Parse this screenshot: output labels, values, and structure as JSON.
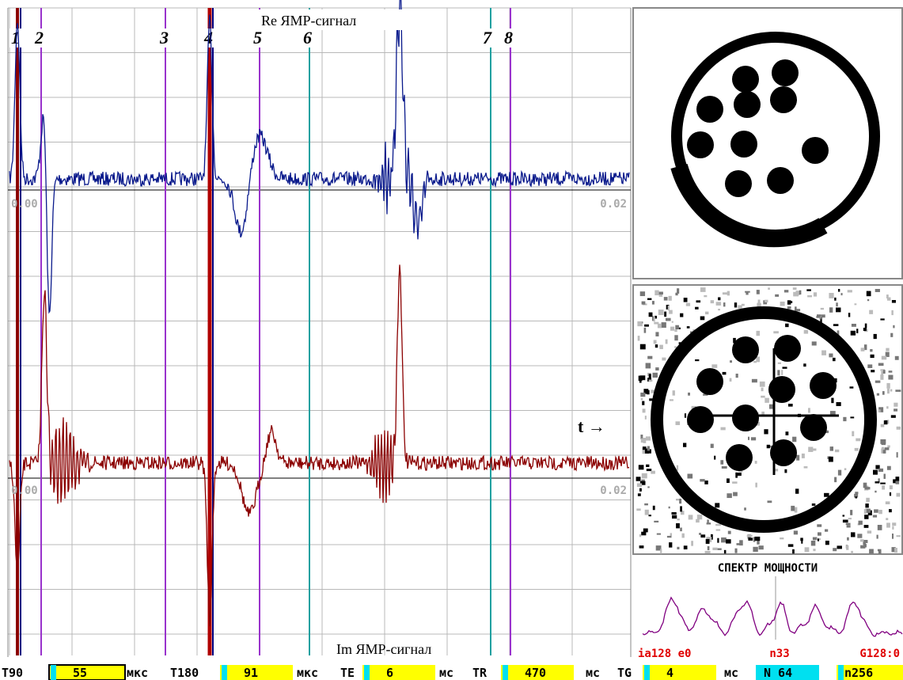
{
  "signals": {
    "re_label": "Re ЯМР-сигнал",
    "im_label": "Im ЯМР-сигнал",
    "markers": [
      "1",
      "2",
      "3",
      "4",
      "5",
      "6",
      "7",
      "8"
    ],
    "re_axis": {
      "start": "0.00",
      "end": "0.02"
    },
    "im_axis": {
      "start": "0.00",
      "end": "0.02"
    },
    "time_label": "t →"
  },
  "spectrum": {
    "title": "СПЕКТР МОЩНОСТИ",
    "status": [
      "ia128 e0",
      "n33",
      "G128:0"
    ]
  },
  "params": [
    {
      "label": "T90",
      "value": "55",
      "unit": "мкс"
    },
    {
      "label": "T180",
      "value": "91",
      "unit": "мкс"
    },
    {
      "label": "TE",
      "value": "6",
      "unit": "мс"
    },
    {
      "label": "TR",
      "value": "470",
      "unit": "мс"
    },
    {
      "label": "TG",
      "value": "4",
      "unit": "мс"
    },
    {
      "value": "N 64"
    },
    {
      "value": "n256"
    }
  ]
}
